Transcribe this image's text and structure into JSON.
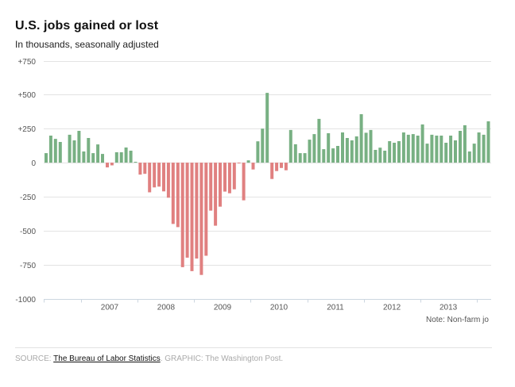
{
  "header": {
    "title": "U.S. jobs gained or lost",
    "subtitle": "In thousands, seasonally adjusted"
  },
  "note": "Note: Non-farm jo",
  "footer": {
    "source_prefix": "SOURCE: ",
    "source_link": "The Bureau of Labor Statistics",
    "source_suffix": ". GRAPHIC: The Washington Post."
  },
  "colors": {
    "positive": "#78b083",
    "negative": "#e08080",
    "grid": "#e3e3e3",
    "axis": "#ccd6e0"
  },
  "chart_data": {
    "type": "bar",
    "title": "U.S. jobs gained or lost",
    "subtitle": "In thousands, seasonally adjusted",
    "xlabel": "",
    "ylabel": "",
    "ylim": [
      -1000,
      750
    ],
    "yticks": [
      750,
      500,
      250,
      0,
      -250,
      -500,
      -750,
      -1000
    ],
    "ytick_labels": [
      "+750",
      "+500",
      "+250",
      "0",
      "-250",
      "-500",
      "-750",
      "-1000"
    ],
    "grid": true,
    "start_month": "2006-05",
    "xtick_labels": [
      "2007",
      "2008",
      "2009",
      "2010",
      "2011",
      "2012",
      "2013"
    ],
    "year_boundaries_month_index": [
      8,
      20,
      32,
      44,
      56,
      68,
      80,
      92
    ],
    "values": [
      70,
      199,
      175,
      152,
      0,
      205,
      164,
      234,
      82,
      181,
      70,
      134,
      64,
      -35,
      -20,
      76,
      76,
      111,
      88,
      6,
      -88,
      -82,
      -218,
      -182,
      -176,
      -211,
      -258,
      -451,
      -474,
      -769,
      -699,
      -798,
      -705,
      -826,
      -685,
      -353,
      -464,
      -324,
      -213,
      -225,
      -196,
      -6,
      -277,
      17,
      -50,
      157,
      250,
      513,
      -120,
      -62,
      -39,
      -56,
      240,
      135,
      70,
      70,
      169,
      210,
      322,
      99,
      216,
      105,
      123,
      222,
      181,
      164,
      193,
      356,
      220,
      240,
      94,
      110,
      88,
      158,
      146,
      158,
      222,
      205,
      210,
      199,
      281,
      140,
      205,
      199,
      199,
      146,
      199,
      164,
      234,
      275,
      82,
      140,
      222,
      205,
      304
    ]
  }
}
